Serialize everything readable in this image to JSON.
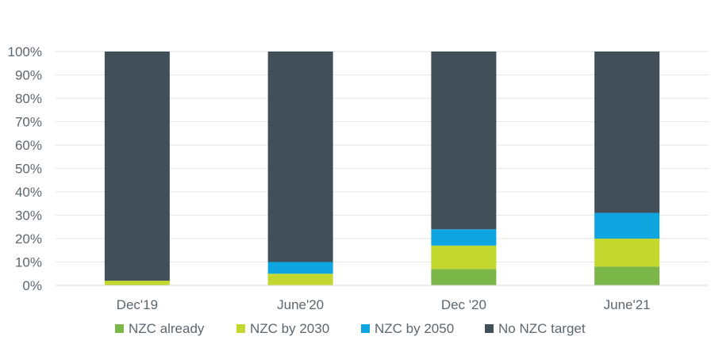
{
  "chart_data": {
    "type": "bar",
    "stacked": true,
    "categories": [
      "Dec'19",
      "June'20",
      "Dec '20",
      "June'21"
    ],
    "series": [
      {
        "name": "NZC already",
        "color": "#7ab648",
        "values": [
          0,
          0,
          7,
          8
        ]
      },
      {
        "name": "NZC by 2030",
        "color": "#c3d82e",
        "values": [
          2,
          5,
          10,
          12
        ]
      },
      {
        "name": "NZC by 2050",
        "color": "#0ea5e0",
        "values": [
          0,
          5,
          7,
          11
        ]
      },
      {
        "name": "No NZC target",
        "color": "#414f59",
        "values": [
          98,
          90,
          76,
          69
        ]
      }
    ],
    "y_ticks": [
      "0%",
      "10%",
      "20%",
      "30%",
      "40%",
      "50%",
      "60%",
      "70%",
      "80%",
      "90%",
      "100%"
    ],
    "ylim": [
      0,
      100
    ],
    "grid": true,
    "legend_position": "bottom"
  }
}
